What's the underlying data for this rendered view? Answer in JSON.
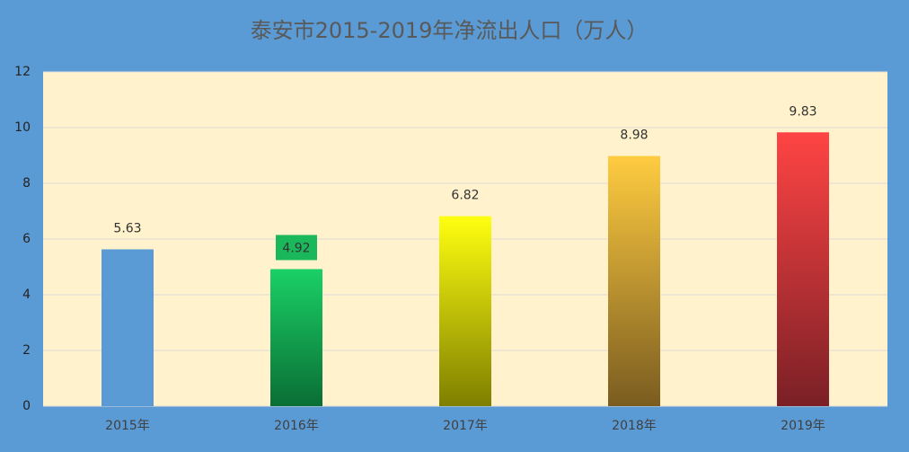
{
  "chart_data": {
    "type": "bar",
    "title": "泰安市2015-2019年净流出人口（万人）",
    "categories": [
      "2015年",
      "2016年",
      "2017年",
      "2018年",
      "2019年"
    ],
    "values": [
      5.63,
      4.92,
      6.82,
      8.98,
      9.83
    ],
    "colors": [
      [
        "#5b9bd5",
        "#5b9bd5"
      ],
      [
        "#1ad066",
        "#0a6e35"
      ],
      [
        "#ffff10",
        "#7f7f00"
      ],
      [
        "#ffcc40",
        "#7a5c20"
      ],
      [
        "#ff4444",
        "#7a2026"
      ]
    ],
    "ylim": [
      0,
      12
    ],
    "yticks": [
      0,
      2,
      4,
      6,
      8,
      10,
      12
    ],
    "grid": true
  }
}
